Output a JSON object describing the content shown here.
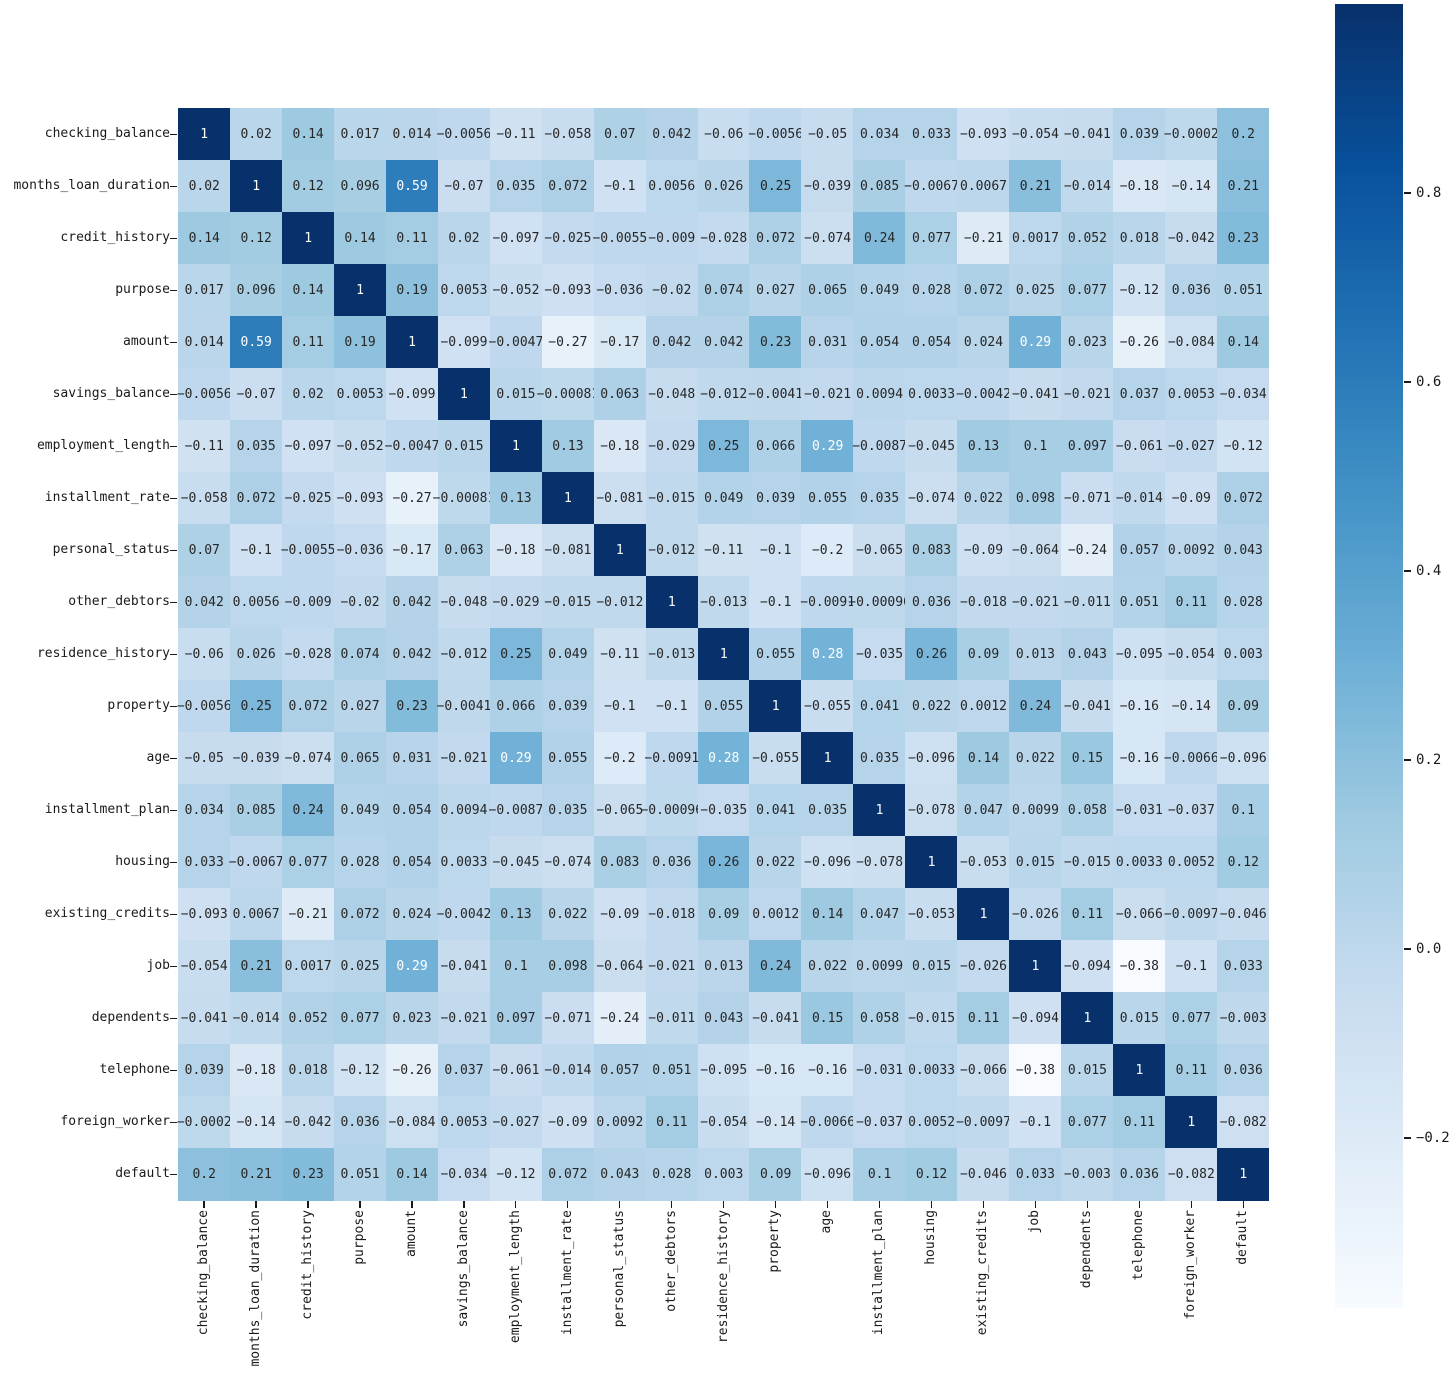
{
  "figure": {
    "background": "#ffffff"
  },
  "chart_data": {
    "type": "heatmap",
    "title": "",
    "labels": [
      "checking_balance",
      "months_loan_duration",
      "credit_history",
      "purpose",
      "amount",
      "savings_balance",
      "employment_length",
      "installment_rate",
      "personal_status",
      "other_debtors",
      "residence_history",
      "property",
      "age",
      "installment_plan",
      "housing",
      "existing_credits",
      "job",
      "dependents",
      "telephone",
      "foreign_worker",
      "default"
    ],
    "matrix": [
      [
        1,
        0.02,
        0.14,
        0.017,
        0.014,
        -0.0056,
        -0.11,
        -0.058,
        0.07,
        0.042,
        -0.06,
        -0.0056,
        -0.05,
        0.034,
        0.033,
        -0.093,
        -0.054,
        -0.041,
        0.039,
        -0.0002,
        0.2
      ],
      [
        0.02,
        1,
        0.12,
        0.096,
        0.59,
        -0.07,
        0.035,
        0.072,
        -0.1,
        0.0056,
        0.026,
        0.25,
        -0.039,
        0.085,
        -0.0067,
        0.0067,
        0.21,
        -0.014,
        -0.18,
        -0.14,
        0.21
      ],
      [
        0.14,
        0.12,
        1,
        0.14,
        0.11,
        0.02,
        -0.097,
        -0.025,
        -0.0055,
        -0.009,
        -0.028,
        0.072,
        -0.074,
        0.24,
        0.077,
        -0.21,
        0.0017,
        0.052,
        0.018,
        -0.042,
        0.23
      ],
      [
        0.017,
        0.096,
        0.14,
        1,
        0.19,
        0.0053,
        -0.052,
        -0.093,
        -0.036,
        -0.02,
        0.074,
        0.027,
        0.065,
        0.049,
        0.028,
        0.072,
        0.025,
        0.077,
        -0.12,
        0.036,
        0.051
      ],
      [
        0.014,
        0.59,
        0.11,
        0.19,
        1,
        -0.099,
        -0.0047,
        -0.27,
        -0.17,
        0.042,
        0.042,
        0.23,
        0.031,
        0.054,
        0.054,
        0.024,
        0.29,
        0.023,
        -0.26,
        -0.084,
        0.14
      ],
      [
        -0.0056,
        -0.07,
        0.02,
        0.0053,
        -0.099,
        1,
        0.015,
        -0.00081,
        0.063,
        -0.048,
        -0.012,
        -0.0041,
        -0.021,
        0.0094,
        0.0033,
        -0.0042,
        -0.041,
        -0.021,
        0.037,
        0.0053,
        -0.034
      ],
      [
        -0.11,
        0.035,
        -0.097,
        -0.052,
        -0.0047,
        0.015,
        1,
        0.13,
        -0.18,
        -0.029,
        0.25,
        0.066,
        0.29,
        -0.0087,
        -0.045,
        0.13,
        0.1,
        0.097,
        -0.061,
        -0.027,
        -0.12
      ],
      [
        -0.058,
        0.072,
        -0.025,
        -0.093,
        -0.27,
        -0.00081,
        0.13,
        1,
        -0.081,
        -0.015,
        0.049,
        0.039,
        0.055,
        0.035,
        -0.074,
        0.022,
        0.098,
        -0.071,
        -0.014,
        -0.09,
        0.072
      ],
      [
        0.07,
        -0.1,
        -0.0055,
        -0.036,
        -0.17,
        0.063,
        -0.18,
        -0.081,
        1,
        -0.012,
        -0.11,
        -0.1,
        -0.2,
        -0.065,
        0.083,
        -0.09,
        -0.064,
        -0.24,
        0.057,
        0.0092,
        0.043
      ],
      [
        0.042,
        0.0056,
        -0.009,
        -0.02,
        0.042,
        -0.048,
        -0.029,
        -0.015,
        -0.012,
        1,
        -0.013,
        -0.1,
        -0.0091,
        -0.00096,
        0.036,
        -0.018,
        -0.021,
        -0.011,
        0.051,
        0.11,
        0.028
      ],
      [
        -0.06,
        0.026,
        -0.028,
        0.074,
        0.042,
        -0.012,
        0.25,
        0.049,
        -0.11,
        -0.013,
        1,
        0.055,
        0.28,
        -0.035,
        0.26,
        0.09,
        0.013,
        0.043,
        -0.095,
        -0.054,
        0.003
      ],
      [
        -0.0056,
        0.25,
        0.072,
        0.027,
        0.23,
        -0.0041,
        0.066,
        0.039,
        -0.1,
        -0.1,
        0.055,
        1,
        -0.055,
        0.041,
        0.022,
        0.0012,
        0.24,
        -0.041,
        -0.16,
        -0.14,
        0.09
      ],
      [
        -0.05,
        -0.039,
        -0.074,
        0.065,
        0.031,
        -0.021,
        0.29,
        0.055,
        -0.2,
        -0.0091,
        0.28,
        -0.055,
        1,
        0.035,
        -0.096,
        0.14,
        0.022,
        0.15,
        -0.16,
        -0.0066,
        -0.096
      ],
      [
        0.034,
        0.085,
        0.24,
        0.049,
        0.054,
        0.0094,
        -0.0087,
        0.035,
        -0.065,
        -0.00096,
        -0.035,
        0.041,
        0.035,
        1,
        -0.078,
        0.047,
        0.0099,
        0.058,
        -0.031,
        -0.037,
        0.1
      ],
      [
        0.033,
        -0.0067,
        0.077,
        0.028,
        0.054,
        0.0033,
        -0.045,
        -0.074,
        0.083,
        0.036,
        0.26,
        0.022,
        -0.096,
        -0.078,
        1,
        -0.053,
        0.015,
        -0.015,
        0.0033,
        0.0052,
        0.12
      ],
      [
        -0.093,
        0.0067,
        -0.21,
        0.072,
        0.024,
        -0.0042,
        0.13,
        0.022,
        -0.09,
        -0.018,
        0.09,
        0.0012,
        0.14,
        0.047,
        -0.053,
        1,
        -0.026,
        0.11,
        -0.066,
        -0.0097,
        -0.046
      ],
      [
        -0.054,
        0.21,
        0.0017,
        0.025,
        0.29,
        -0.041,
        0.1,
        0.098,
        -0.064,
        -0.021,
        0.013,
        0.24,
        0.022,
        0.0099,
        0.015,
        -0.026,
        1,
        -0.094,
        -0.38,
        -0.1,
        0.033
      ],
      [
        -0.041,
        -0.014,
        0.052,
        0.077,
        0.023,
        -0.021,
        0.097,
        -0.071,
        -0.24,
        -0.011,
        0.043,
        -0.041,
        0.15,
        0.058,
        -0.015,
        0.11,
        -0.094,
        1,
        0.015,
        0.077,
        -0.003
      ],
      [
        0.039,
        -0.18,
        0.018,
        -0.12,
        -0.26,
        0.037,
        -0.061,
        -0.014,
        0.057,
        0.051,
        -0.095,
        -0.16,
        -0.16,
        -0.031,
        0.0033,
        -0.066,
        -0.38,
        0.015,
        1,
        0.11,
        0.036
      ],
      [
        -0.0002,
        -0.14,
        -0.042,
        0.036,
        -0.084,
        0.0053,
        -0.027,
        -0.09,
        0.0092,
        0.11,
        -0.054,
        -0.14,
        -0.0066,
        -0.037,
        0.0052,
        -0.0097,
        -0.1,
        0.077,
        0.11,
        1,
        -0.082
      ],
      [
        0.2,
        0.21,
        0.23,
        0.051,
        0.14,
        -0.034,
        -0.12,
        0.072,
        0.043,
        0.028,
        0.003,
        0.09,
        -0.096,
        0.1,
        0.12,
        -0.046,
        0.033,
        -0.003,
        0.036,
        -0.082,
        1
      ]
    ],
    "vmin": -0.38,
    "vmax": 1,
    "grid": false,
    "legend_position": "right-colorbar",
    "colormap": {
      "name": "Blues",
      "stops": [
        "#f7fbff",
        "#deebf7",
        "#c6dbef",
        "#9ecae1",
        "#6baed6",
        "#4292c6",
        "#2171b5",
        "#08519c",
        "#08306b"
      ]
    },
    "annotation_colors": {
      "dark_text": "#262626",
      "light_text": "#ffffff"
    },
    "colorbar": {
      "tick_values": [
        0.8,
        0.6,
        0.4,
        0.2,
        0.0,
        -0.2
      ],
      "tick_labels": [
        "0.8",
        "0.6",
        "0.4",
        "0.2",
        "0.0",
        "−0.2"
      ]
    }
  }
}
